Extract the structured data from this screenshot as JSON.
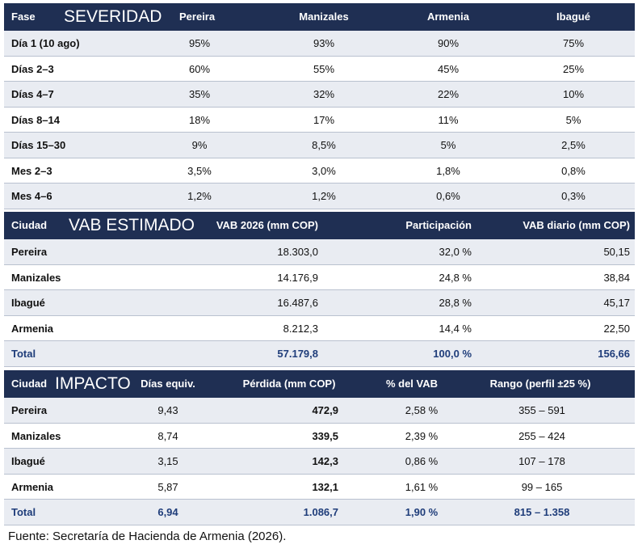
{
  "severity": {
    "headers": {
      "fase": "Fase",
      "title": "SEVERIDAD",
      "c1": "Pereira",
      "c2": "Manizales",
      "c3": "Armenia",
      "c4": "Ibagué"
    },
    "rows": [
      [
        "Día 1 (10 ago)",
        "95%",
        "93%",
        "90%",
        "75%"
      ],
      [
        "Días 2–3",
        "60%",
        "55%",
        "45%",
        "25%"
      ],
      [
        "Días 4–7",
        "35%",
        "32%",
        "22%",
        "10%"
      ],
      [
        "Días 8–14",
        "18%",
        "17%",
        "11%",
        "5%"
      ],
      [
        "Días 15–30",
        "9%",
        "8,5%",
        "5%",
        "2,5%"
      ],
      [
        "Mes 2–3",
        "3,5%",
        "3,0%",
        "1,8%",
        "0,8%"
      ],
      [
        "Mes 4–6",
        "1,2%",
        "1,2%",
        "0,6%",
        "0,3%"
      ]
    ]
  },
  "vab": {
    "headers": {
      "ciudad": "Ciudad",
      "title": "VAB ESTIMADO",
      "c1": "VAB 2026 (mm COP)",
      "c2": "Participación",
      "c3": "VAB diario (mm COP)"
    },
    "rows": [
      [
        "Pereira",
        "18.303,0",
        "32,0 %",
        "50,15"
      ],
      [
        "Manizales",
        "14.176,9",
        "24,8 %",
        "38,84"
      ],
      [
        "Ibagué",
        "16.487,6",
        "28,8 %",
        "45,17"
      ],
      [
        "Armenia",
        "8.212,3",
        "14,4 %",
        "22,50"
      ]
    ],
    "total": [
      "Total",
      "57.179,8",
      "100,0 %",
      "156,66"
    ]
  },
  "impact": {
    "headers": {
      "ciudad": "Ciudad",
      "title": "IMPACTO",
      "c1": "Días equiv.",
      "c2": "Pérdida (mm COP)",
      "c3": "% del VAB",
      "c4": "Rango (perfil ±25 %)"
    },
    "rows": [
      [
        "Pereira",
        "9,43",
        "472,9",
        "2,58 %",
        "355 – 591"
      ],
      [
        "Manizales",
        "8,74",
        "339,5",
        "2,39 %",
        "255 – 424"
      ],
      [
        "Ibagué",
        "3,15",
        "142,3",
        "0,86 %",
        "107 – 178"
      ],
      [
        "Armenia",
        "5,87",
        "132,1",
        "1,61 %",
        "99 – 165"
      ]
    ],
    "total": [
      "Total",
      "6,94",
      "1.086,7",
      "1,90 %",
      "815 – 1.358"
    ]
  },
  "source": "Fuente: Secretaría de Hacienda de Armenia (2026)."
}
